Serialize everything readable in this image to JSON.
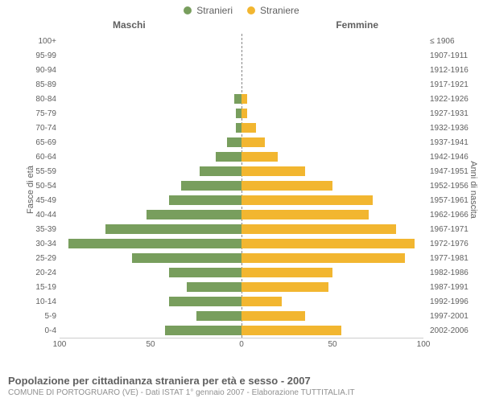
{
  "legend": {
    "left": {
      "label": "Stranieri",
      "color": "#789e5d"
    },
    "right": {
      "label": "Straniere",
      "color": "#f2b630"
    }
  },
  "columns": {
    "left": "Maschi",
    "right": "Femmine"
  },
  "axis_titles": {
    "left": "Fasce di età",
    "right": "Anni di nascita"
  },
  "chart": {
    "type": "bar-pyramid",
    "xmax": 100,
    "xticks_left": [
      100,
      50,
      0
    ],
    "xticks_right": [
      0,
      50,
      100
    ],
    "background_color": "#ffffff",
    "grid_color": "#cccccc",
    "center_line_color": "#888888",
    "bar_color_left": "#789e5d",
    "bar_color_right": "#f2b630",
    "label_fontsize": 10,
    "rows": [
      {
        "age": "100+",
        "birth": "≤ 1906",
        "m": 0,
        "f": 0
      },
      {
        "age": "95-99",
        "birth": "1907-1911",
        "m": 0,
        "f": 0
      },
      {
        "age": "90-94",
        "birth": "1912-1916",
        "m": 0,
        "f": 0
      },
      {
        "age": "85-89",
        "birth": "1917-1921",
        "m": 0,
        "f": 0
      },
      {
        "age": "80-84",
        "birth": "1922-1926",
        "m": 4,
        "f": 3
      },
      {
        "age": "75-79",
        "birth": "1927-1931",
        "m": 3,
        "f": 3
      },
      {
        "age": "70-74",
        "birth": "1932-1936",
        "m": 3,
        "f": 8
      },
      {
        "age": "65-69",
        "birth": "1937-1941",
        "m": 8,
        "f": 13
      },
      {
        "age": "60-64",
        "birth": "1942-1946",
        "m": 14,
        "f": 20
      },
      {
        "age": "55-59",
        "birth": "1947-1951",
        "m": 23,
        "f": 35
      },
      {
        "age": "50-54",
        "birth": "1952-1956",
        "m": 33,
        "f": 50
      },
      {
        "age": "45-49",
        "birth": "1957-1961",
        "m": 40,
        "f": 72
      },
      {
        "age": "40-44",
        "birth": "1962-1966",
        "m": 52,
        "f": 70
      },
      {
        "age": "35-39",
        "birth": "1967-1971",
        "m": 75,
        "f": 85
      },
      {
        "age": "30-34",
        "birth": "1972-1976",
        "m": 95,
        "f": 95
      },
      {
        "age": "25-29",
        "birth": "1977-1981",
        "m": 60,
        "f": 90
      },
      {
        "age": "20-24",
        "birth": "1982-1986",
        "m": 40,
        "f": 50
      },
      {
        "age": "15-19",
        "birth": "1987-1991",
        "m": 30,
        "f": 48
      },
      {
        "age": "10-14",
        "birth": "1992-1996",
        "m": 40,
        "f": 22
      },
      {
        "age": "5-9",
        "birth": "1997-2001",
        "m": 25,
        "f": 35
      },
      {
        "age": "0-4",
        "birth": "2002-2006",
        "m": 42,
        "f": 55
      }
    ]
  },
  "footer": {
    "title": "Popolazione per cittadinanza straniera per età e sesso - 2007",
    "subtitle": "COMUNE DI PORTOGRUARO (VE) - Dati ISTAT 1° gennaio 2007 - Elaborazione TUTTITALIA.IT"
  }
}
